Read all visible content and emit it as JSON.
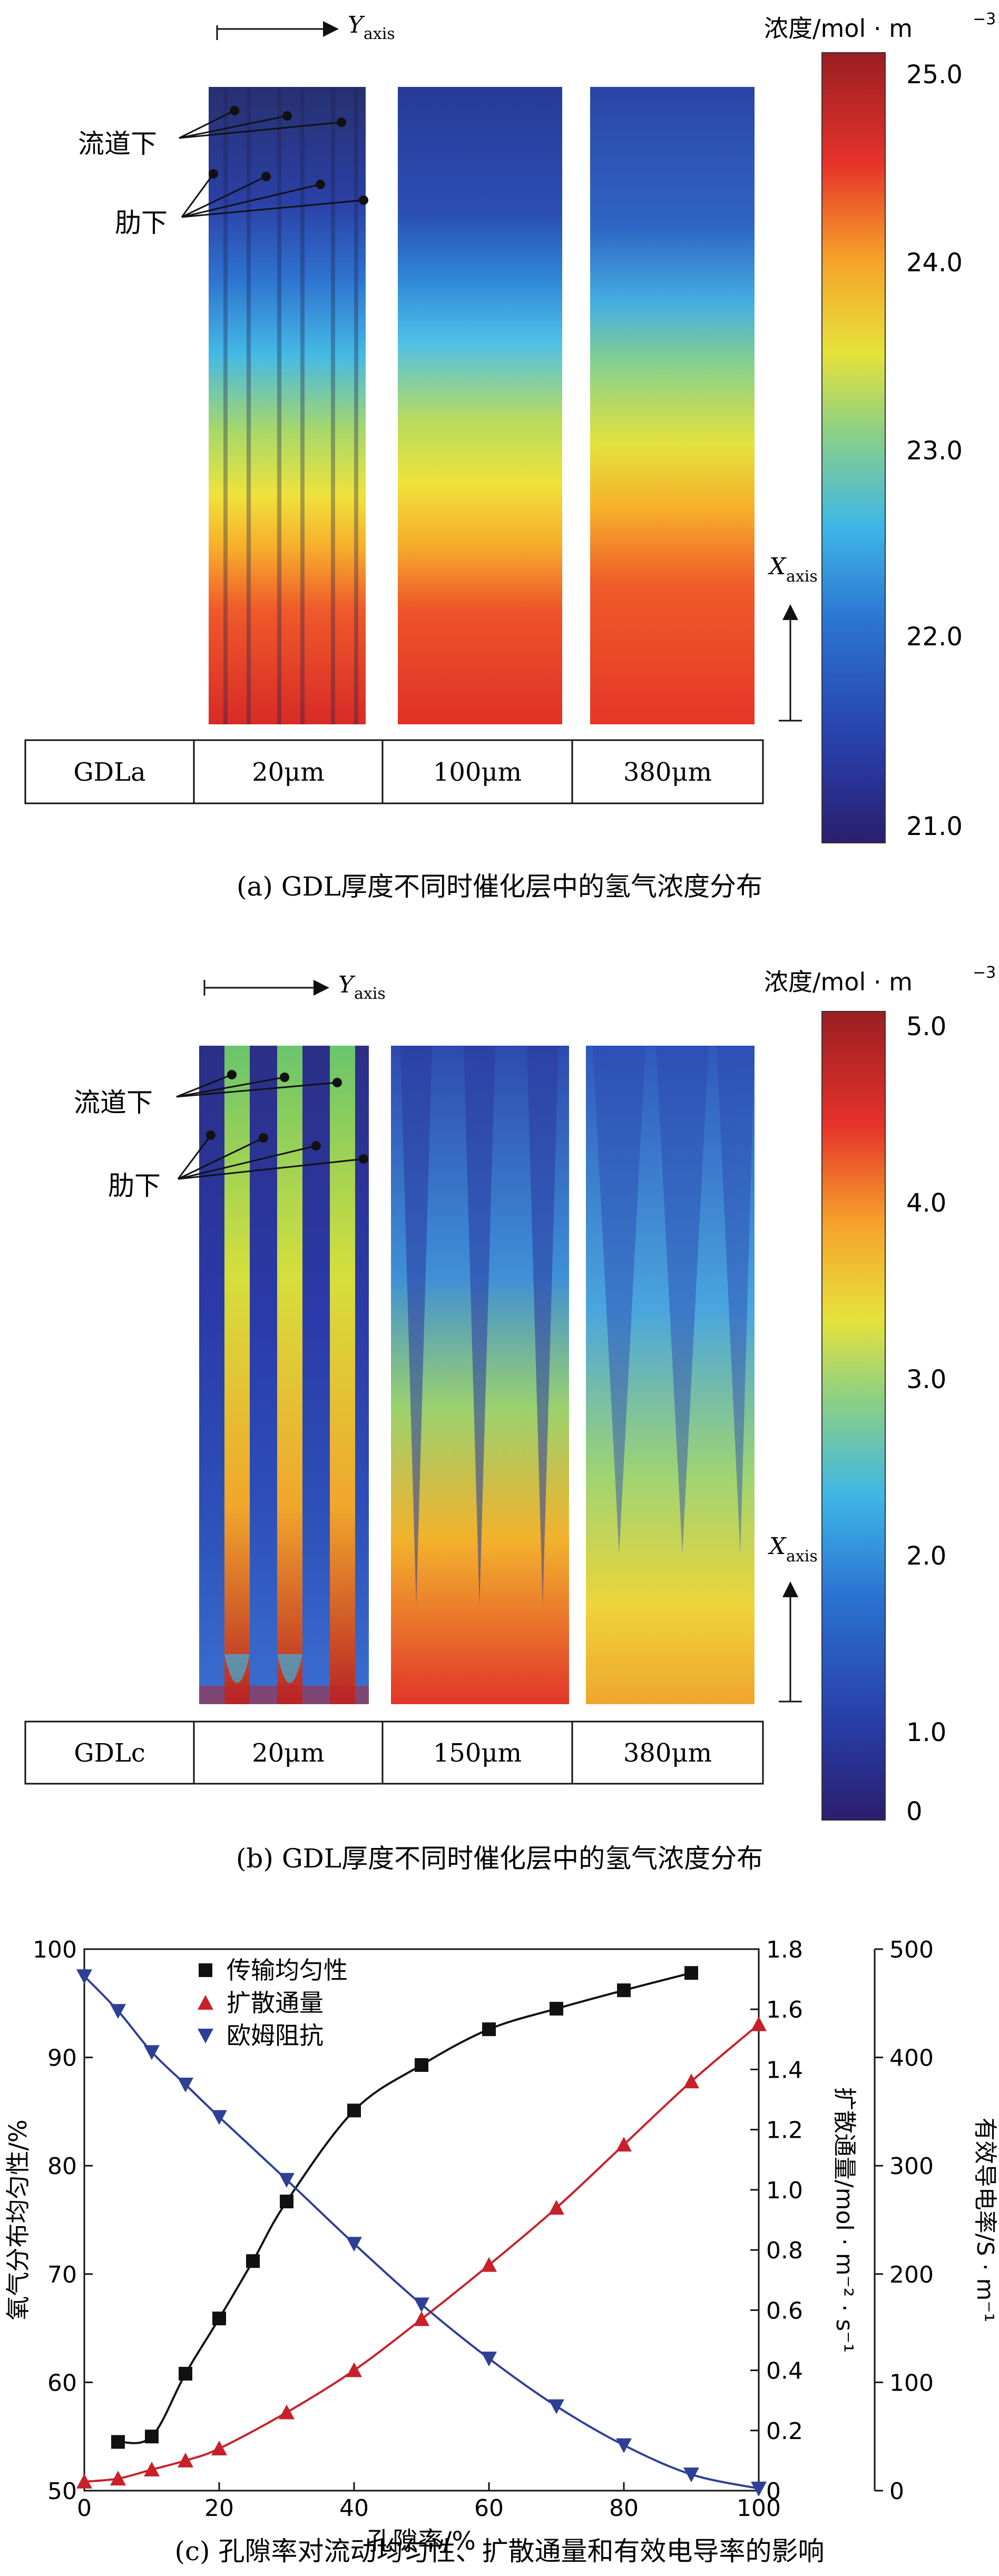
{
  "panel_a": {
    "y_axis_letter": "Y",
    "y_axis_sub": "axis",
    "x_axis_letter": "X",
    "x_axis_sub": "axis",
    "channel_label": "流道下",
    "rib_label": "肋下",
    "table_labels": [
      "GDLa",
      "20μm",
      "100μm",
      "380μm"
    ],
    "caption": "(a) GDL厚度不同时催化层中的氢气浓度分布",
    "colorbar_title": "浓度/mol · m",
    "colorbar_title_sup": "−3",
    "colorbar_ticks": [
      "25.0",
      "24.0",
      "23.0",
      "22.0",
      "21.0"
    ]
  },
  "panel_b": {
    "y_axis_letter": "Y",
    "y_axis_sub": "axis",
    "x_axis_letter": "X",
    "x_axis_sub": "axis",
    "channel_label": "流道下",
    "rib_label": "肋下",
    "table_labels": [
      "GDLc",
      "20μm",
      "150μm",
      "380μm"
    ],
    "caption": "(b) GDL厚度不同时催化层中的氢气浓度分布",
    "colorbar_title": "浓度/mol · m",
    "colorbar_title_sup": "−3",
    "colorbar_ticks": [
      "5.0",
      "4.0",
      "3.0",
      "2.0",
      "1.0",
      "0"
    ]
  },
  "panel_c": {
    "caption": "(c) 孔隙率对流动均匀性、扩散通量和有效电导率的影响",
    "colors": {
      "uniformity": "#111111",
      "flux": "#c8202a",
      "resistance": "#2e3f95"
    },
    "chart_data": {
      "type": "line",
      "xlabel": "孔隙率/%",
      "xlim": [
        0,
        100
      ],
      "x_ticks": [
        "0",
        "20",
        "40",
        "60",
        "80",
        "100"
      ],
      "axes": {
        "left": {
          "label": "氧气分布均匀性/%",
          "ylim": [
            50,
            100
          ],
          "ticks": [
            "50",
            "60",
            "70",
            "80",
            "90",
            "100"
          ]
        },
        "right1": {
          "label": "扩散通量/mol · m⁻² · s⁻¹",
          "ylim": [
            0,
            1.8
          ],
          "ticks": [
            "0",
            "0.2",
            "0.4",
            "0.6",
            "0.8",
            "1.0",
            "1.2",
            "1.4",
            "1.6",
            "1.8"
          ]
        },
        "right2": {
          "label": "有效导电率/S · m⁻¹",
          "ylim": [
            0,
            500
          ],
          "ticks": [
            "0",
            "100",
            "200",
            "300",
            "400",
            "500"
          ]
        }
      },
      "legend_position": "top-left",
      "series": [
        {
          "name": "传输均匀性",
          "axis": "left",
          "marker": "square",
          "x": [
            5,
            10,
            15,
            20,
            25,
            30,
            40,
            50,
            60,
            70,
            80,
            90
          ],
          "y": [
            54.5,
            55.0,
            60.8,
            65.9,
            71.2,
            76.7,
            85.1,
            89.3,
            92.6,
            94.5,
            96.2,
            97.8
          ]
        },
        {
          "name": "扩散通量",
          "axis": "right1",
          "marker": "triangle-up",
          "x": [
            0,
            5,
            10,
            15,
            20,
            30,
            40,
            50,
            60,
            70,
            80,
            90,
            100
          ],
          "y": [
            0.03,
            0.04,
            0.07,
            0.1,
            0.14,
            0.26,
            0.4,
            0.57,
            0.75,
            0.94,
            1.15,
            1.36,
            1.55
          ]
        },
        {
          "name": "欧姆阻抗",
          "axis": "right2",
          "marker": "triangle-down",
          "x": [
            0,
            5,
            10,
            15,
            20,
            30,
            40,
            50,
            60,
            70,
            80,
            90,
            100
          ],
          "y": [
            475,
            443,
            405,
            375,
            345,
            287,
            228,
            172,
            122,
            78,
            42,
            15,
            2
          ]
        }
      ]
    }
  }
}
